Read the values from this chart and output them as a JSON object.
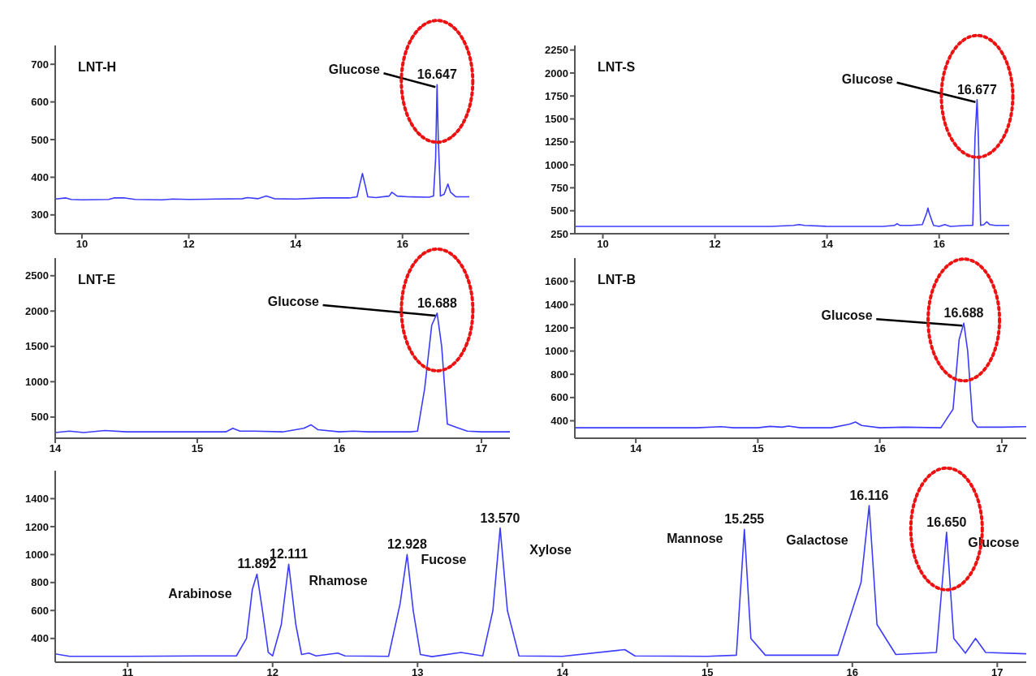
{
  "chart_data": [
    {
      "type": "line",
      "title": "LNT-H",
      "color": "#3c3cff",
      "marker": "none",
      "xlim": [
        9.5,
        17.25
      ],
      "xticks": [
        10,
        12,
        14,
        16
      ],
      "ylim": [
        250,
        750
      ],
      "yticks": [
        300,
        400,
        500,
        600,
        700
      ],
      "x": [
        9.5,
        9.7,
        9.8,
        10,
        10.5,
        10.6,
        10.8,
        11,
        11.5,
        11.7,
        12,
        12.5,
        13,
        13.1,
        13.3,
        13.45,
        13.6,
        14,
        14.5,
        15,
        15.15,
        15.2,
        15.25,
        15.3,
        15.35,
        15.5,
        15.75,
        15.8,
        15.9,
        16.1,
        16.5,
        16.58,
        16.62,
        16.647,
        16.67,
        16.71,
        16.78,
        16.85,
        16.9,
        17.0,
        17.25
      ],
      "values": [
        342,
        345,
        341,
        340,
        341,
        345,
        345,
        341,
        340,
        342,
        341,
        342,
        343,
        346,
        343,
        350,
        343,
        342,
        345,
        345,
        348,
        380,
        410,
        380,
        348,
        346,
        350,
        360,
        350,
        348,
        347,
        350,
        450,
        646,
        500,
        350,
        355,
        382,
        360,
        348,
        348
      ],
      "annotations": [
        {
          "text": "16.647",
          "x": 16.647,
          "y": 646
        },
        {
          "text": "Glucose",
          "x": 16.647,
          "y": 646
        }
      ]
    },
    {
      "type": "line",
      "title": "LNT-S",
      "color": "#3c3cff",
      "marker": "none",
      "xlim": [
        9.5,
        17.25
      ],
      "xticks": [
        10,
        12,
        14,
        16
      ],
      "ylim": [
        250,
        2300
      ],
      "yticks": [
        250,
        500,
        750,
        1000,
        1250,
        1500,
        1750,
        2000,
        2250
      ],
      "x": [
        9.5,
        10,
        11,
        12,
        13,
        13.4,
        13.5,
        13.6,
        14,
        15,
        15.2,
        15.25,
        15.3,
        15.5,
        15.7,
        15.78,
        15.8,
        15.82,
        15.9,
        16,
        16.1,
        16.2,
        16.5,
        16.6,
        16.64,
        16.677,
        16.7,
        16.74,
        16.8,
        16.85,
        16.9,
        17,
        17.25
      ],
      "values": [
        330,
        330,
        330,
        330,
        330,
        340,
        350,
        340,
        330,
        330,
        340,
        360,
        340,
        340,
        350,
        480,
        530,
        480,
        340,
        330,
        350,
        330,
        340,
        340,
        1300,
        1710,
        1300,
        340,
        350,
        380,
        350,
        340,
        340
      ],
      "annotations": [
        {
          "text": "16.677",
          "x": 16.677,
          "y": 1710
        },
        {
          "text": "Glucose",
          "x": 16.677,
          "y": 1710
        }
      ]
    },
    {
      "type": "line",
      "title": "LNT-E",
      "color": "#3c3cff",
      "marker": "none",
      "xlim": [
        14,
        17.2
      ],
      "xticks": [
        14,
        15,
        16,
        17
      ],
      "ylim": [
        200,
        2750
      ],
      "yticks": [
        500,
        1000,
        1500,
        2000,
        2500
      ],
      "x": [
        14,
        14.1,
        14.2,
        14.35,
        14.5,
        14.8,
        15,
        15.2,
        15.25,
        15.3,
        15.4,
        15.6,
        15.75,
        15.8,
        15.85,
        16,
        16.1,
        16.2,
        16.5,
        16.55,
        16.6,
        16.65,
        16.688,
        16.72,
        16.76,
        16.83,
        16.9,
        17,
        17.2
      ],
      "values": [
        280,
        300,
        280,
        310,
        290,
        290,
        290,
        290,
        340,
        300,
        300,
        290,
        340,
        390,
        320,
        290,
        300,
        290,
        290,
        300,
        900,
        1800,
        1970,
        1500,
        400,
        350,
        300,
        290,
        290
      ],
      "annotations": [
        {
          "text": "16.688",
          "x": 16.688,
          "y": 1970
        },
        {
          "text": "Glucose",
          "x": 16.688,
          "y": 1970
        }
      ]
    },
    {
      "type": "line",
      "title": "LNT-B",
      "color": "#3c3cff",
      "marker": "none",
      "xlim": [
        13.5,
        17.2
      ],
      "xticks": [
        14,
        15,
        16,
        17
      ],
      "ylim": [
        250,
        1800
      ],
      "yticks": [
        400,
        600,
        800,
        1000,
        1200,
        1400,
        1600
      ],
      "x": [
        13.5,
        14,
        14.5,
        14.7,
        14.8,
        15,
        15.1,
        15.2,
        15.25,
        15.35,
        15.6,
        15.75,
        15.8,
        15.85,
        16,
        16.2,
        16.5,
        16.6,
        16.65,
        16.688,
        16.72,
        16.76,
        16.8,
        17,
        17.2
      ],
      "values": [
        340,
        340,
        340,
        350,
        340,
        340,
        352,
        345,
        355,
        340,
        340,
        370,
        390,
        360,
        340,
        345,
        340,
        500,
        1100,
        1240,
        1000,
        400,
        345,
        345,
        350
      ],
      "annotations": [
        {
          "text": "16.688",
          "x": 16.688,
          "y": 1240
        },
        {
          "text": "Glucose",
          "x": 16.688,
          "y": 1240
        }
      ]
    },
    {
      "type": "line",
      "color": "#3c3cff",
      "marker": "none",
      "xlim": [
        10.5,
        17.2
      ],
      "xticks": [
        11,
        12,
        13,
        14,
        15,
        16,
        17
      ],
      "ylim": [
        230,
        1600
      ],
      "yticks": [
        400,
        600,
        800,
        1000,
        1200,
        1400
      ],
      "x": [
        10.5,
        10.6,
        11,
        11.5,
        11.75,
        11.82,
        11.86,
        11.892,
        11.93,
        11.97,
        12.0,
        12.06,
        12.111,
        12.16,
        12.2,
        12.25,
        12.3,
        12.45,
        12.5,
        12.8,
        12.88,
        12.928,
        12.97,
        13.02,
        13.1,
        13.3,
        13.45,
        13.52,
        13.57,
        13.62,
        13.7,
        14,
        14.43,
        14.5,
        15,
        15.2,
        15.255,
        15.3,
        15.4,
        15.9,
        16.06,
        16.116,
        16.17,
        16.3,
        16.58,
        16.65,
        16.7,
        16.78,
        16.85,
        16.92,
        17.2
      ],
      "values": [
        290,
        272,
        272,
        275,
        275,
        400,
        750,
        860,
        600,
        300,
        275,
        500,
        930,
        500,
        285,
        295,
        275,
        295,
        275,
        272,
        650,
        1000,
        600,
        285,
        270,
        300,
        275,
        600,
        1190,
        600,
        275,
        272,
        320,
        275,
        272,
        280,
        1180,
        400,
        280,
        280,
        800,
        1350,
        500,
        285,
        300,
        1160,
        400,
        295,
        400,
        300,
        290
      ],
      "annotations": [
        {
          "text": "11.892",
          "x": 11.892,
          "y": 860
        },
        {
          "text": "Arabinose",
          "x": 11.892,
          "y": 860
        },
        {
          "text": "12.111",
          "x": 12.111,
          "y": 930
        },
        {
          "text": "Rhamose",
          "x": 12.111,
          "y": 930
        },
        {
          "text": "12.928",
          "x": 12.928,
          "y": 1000
        },
        {
          "text": "Fucose",
          "x": 12.928,
          "y": 1000
        },
        {
          "text": "13.570",
          "x": 13.57,
          "y": 1190
        },
        {
          "text": "Xylose",
          "x": 13.57,
          "y": 1190
        },
        {
          "text": "15.255",
          "x": 15.255,
          "y": 1180
        },
        {
          "text": "Mannose",
          "x": 15.255,
          "y": 1180
        },
        {
          "text": "16.116",
          "x": 16.116,
          "y": 1350
        },
        {
          "text": "Galactose",
          "x": 16.116,
          "y": 1350
        },
        {
          "text": "16.650",
          "x": 16.65,
          "y": 1160
        },
        {
          "text": "Glucose",
          "x": 16.65,
          "y": 1160
        }
      ]
    }
  ]
}
